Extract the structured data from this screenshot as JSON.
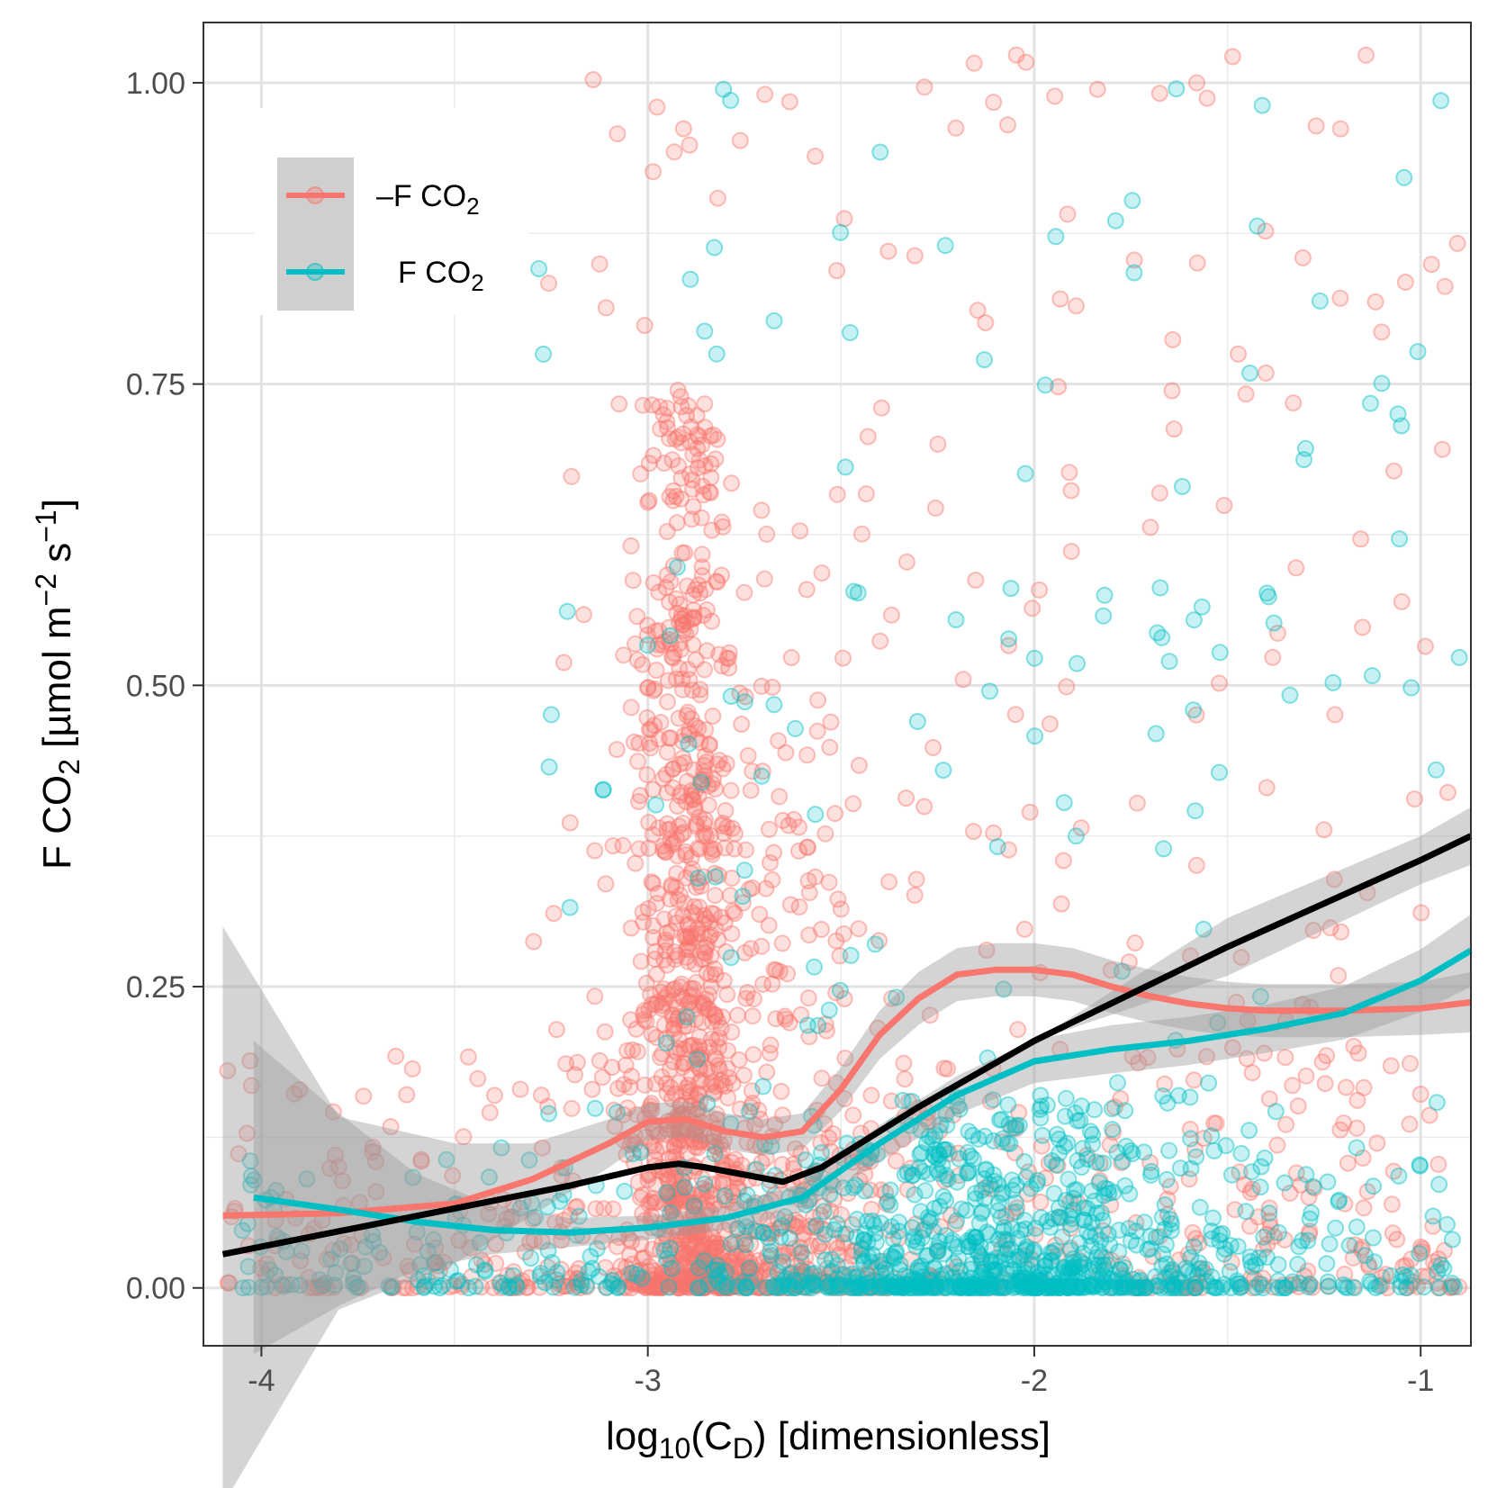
{
  "chart_data": {
    "type": "scatter",
    "title": "",
    "xlabel": {
      "main": "log",
      "sub": "10",
      "mid": "(C",
      "sub2": "D",
      "rest": ") [dimensionless]"
    },
    "ylabel": {
      "main": "F CO",
      "sub": "2",
      "rest": " [µmol m",
      "sup1": "−2",
      "mid": " s",
      "sup2": "−1",
      "end": "]"
    },
    "xlim": [
      -4.15,
      -0.87
    ],
    "ylim": [
      -0.048,
      1.05
    ],
    "x_ticks": [
      -4,
      -3,
      -2,
      -1
    ],
    "x_tick_labels": [
      "-4",
      "-3",
      "-2",
      "-1"
    ],
    "y_ticks": [
      0,
      0.25,
      0.5,
      0.75,
      1.0
    ],
    "y_tick_labels": [
      "0.00",
      "0.25",
      "0.50",
      "0.75",
      "1.00"
    ],
    "grid": true,
    "legend_position": "top-left",
    "colors": {
      "neg": "#F8766D",
      "pos": "#00BFC4",
      "overall": "#000000",
      "band": "#999999"
    },
    "series": [
      {
        "name": {
          "main": "–F CO",
          "sub": "2"
        },
        "color": "#F8766D",
        "smooth_x": [
          -4.1,
          -3.8,
          -3.5,
          -3.3,
          -3.1,
          -3.0,
          -2.9,
          -2.8,
          -2.7,
          -2.6,
          -2.5,
          -2.4,
          -2.3,
          -2.2,
          -2.1,
          -2.0,
          -1.9,
          -1.8,
          -1.7,
          -1.6,
          -1.5,
          -1.4,
          -1.2,
          -1.0,
          -0.87
        ],
        "smooth_y": [
          0.06,
          0.062,
          0.07,
          0.09,
          0.12,
          0.138,
          0.14,
          0.13,
          0.125,
          0.13,
          0.165,
          0.21,
          0.24,
          0.26,
          0.264,
          0.264,
          0.26,
          0.25,
          0.242,
          0.236,
          0.232,
          0.23,
          0.23,
          0.232,
          0.237
        ],
        "band_width": [
          0.24,
          0.08,
          0.05,
          0.03,
          0.02,
          0.015,
          0.015,
          0.015,
          0.015,
          0.015,
          0.018,
          0.02,
          0.022,
          0.022,
          0.022,
          0.022,
          0.022,
          0.022,
          0.022,
          0.022,
          0.022,
          0.022,
          0.022,
          0.022,
          0.025
        ]
      },
      {
        "name": {
          "main": "F CO",
          "sub": "2"
        },
        "color": "#00BFC4",
        "smooth_x": [
          -4.02,
          -3.8,
          -3.6,
          -3.4,
          -3.2,
          -3.0,
          -2.8,
          -2.6,
          -2.4,
          -2.2,
          -2.0,
          -1.8,
          -1.6,
          -1.4,
          -1.2,
          -1.0,
          -0.87
        ],
        "smooth_y": [
          0.075,
          0.065,
          0.055,
          0.048,
          0.046,
          0.05,
          0.058,
          0.075,
          0.12,
          0.16,
          0.188,
          0.198,
          0.205,
          0.215,
          0.228,
          0.255,
          0.28
        ],
        "band_width": [
          0.13,
          0.08,
          0.04,
          0.02,
          0.012,
          0.01,
          0.01,
          0.012,
          0.015,
          0.016,
          0.018,
          0.02,
          0.02,
          0.02,
          0.022,
          0.026,
          0.03
        ]
      },
      {
        "name": "",
        "color": "#000000",
        "smooth_x": [
          -4.1,
          -3.5,
          -3.2,
          -3.0,
          -2.92,
          -2.85,
          -2.65,
          -2.55,
          -2.3,
          -2.0,
          -1.5,
          -1.0,
          -0.87
        ],
        "smooth_y": [
          0.028,
          0.066,
          0.085,
          0.1,
          0.103,
          0.1,
          0.088,
          0.1,
          0.15,
          0.205,
          0.283,
          0.355,
          0.375
        ],
        "band_width": [
          0.0,
          0.0,
          0.0,
          0.0,
          0.0,
          0.0,
          0.0,
          0.0,
          0.0,
          0.0,
          0.024,
          0.02,
          0.024
        ]
      }
    ]
  }
}
